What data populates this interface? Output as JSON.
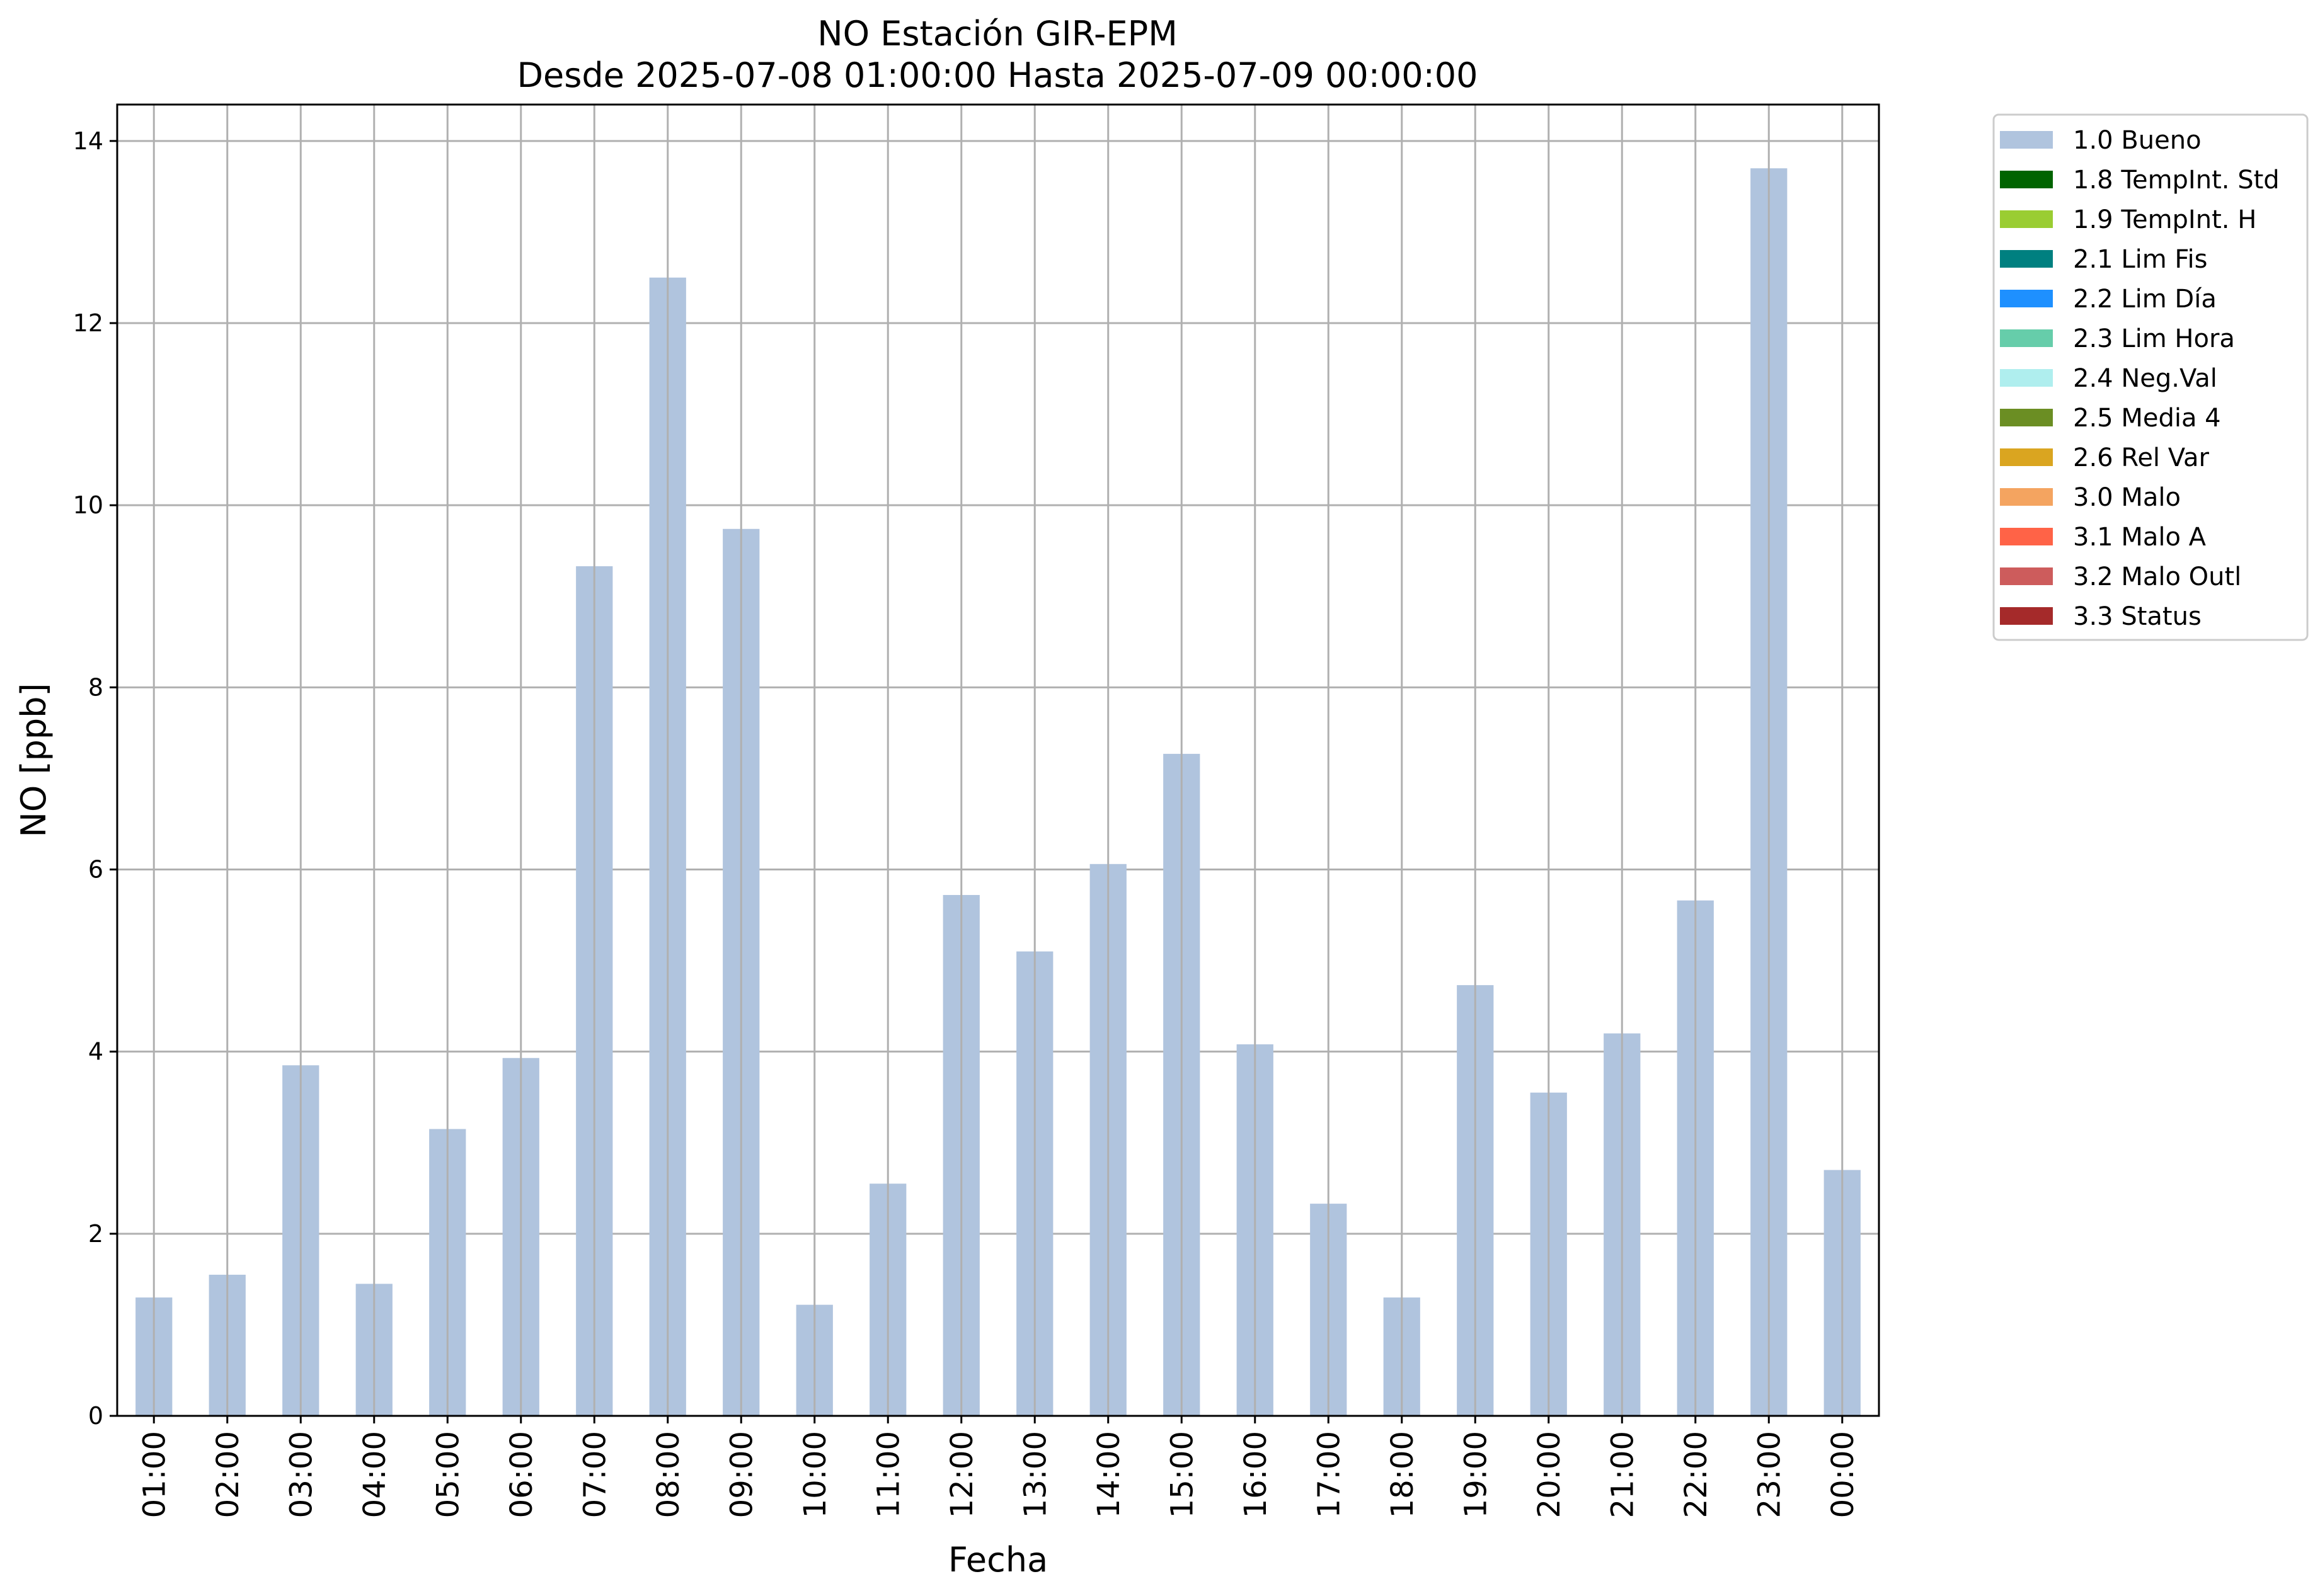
{
  "chart_data": {
    "type": "bar",
    "title": "NO Estación GIR-EPM",
    "subtitle": "Desde 2025-07-08 01:00:00 Hasta 2025-07-09 00:00:00",
    "xlabel": "Fecha",
    "ylabel": "NO [ppb]",
    "ylim": [
      0,
      14.4
    ],
    "yticks": [
      0,
      2,
      4,
      6,
      8,
      10,
      12,
      14
    ],
    "grid": true,
    "legend_position": "outside-top-right",
    "categories": [
      "01:00",
      "02:00",
      "03:00",
      "04:00",
      "05:00",
      "06:00",
      "07:00",
      "08:00",
      "09:00",
      "10:00",
      "11:00",
      "12:00",
      "13:00",
      "14:00",
      "15:00",
      "16:00",
      "17:00",
      "18:00",
      "19:00",
      "20:00",
      "21:00",
      "22:00",
      "23:00",
      "00:00"
    ],
    "series": [
      {
        "name": "1.0 Bueno",
        "color": "#b0c4de",
        "values": [
          1.3,
          1.55,
          3.85,
          1.45,
          3.15,
          3.93,
          9.33,
          12.5,
          9.74,
          1.22,
          2.55,
          5.72,
          5.1,
          6.06,
          7.27,
          4.08,
          2.33,
          1.3,
          4.73,
          3.55,
          4.2,
          5.66,
          13.7,
          2.7
        ]
      }
    ],
    "legend": [
      {
        "label": "1.0 Bueno",
        "color": "#b0c4de"
      },
      {
        "label": "1.8 TempInt. Std",
        "color": "#006400"
      },
      {
        "label": "1.9 TempInt. H",
        "color": "#9acd32"
      },
      {
        "label": "2.1 Lim Fis",
        "color": "#008080"
      },
      {
        "label": "2.2 Lim Día",
        "color": "#1e90ff"
      },
      {
        "label": "2.3 Lim Hora",
        "color": "#66cdaa"
      },
      {
        "label": "2.4 Neg.Val",
        "color": "#afeeee"
      },
      {
        "label": "2.5 Media 4",
        "color": "#6b8e23"
      },
      {
        "label": "2.6 Rel Var",
        "color": "#daa520"
      },
      {
        "label": "3.0 Malo",
        "color": "#f4a460"
      },
      {
        "label": "3.1 Malo A",
        "color": "#ff6347"
      },
      {
        "label": "3.2 Malo Outl",
        "color": "#cd5c5c"
      },
      {
        "label": "3.3 Status",
        "color": "#a52a2a"
      }
    ]
  }
}
